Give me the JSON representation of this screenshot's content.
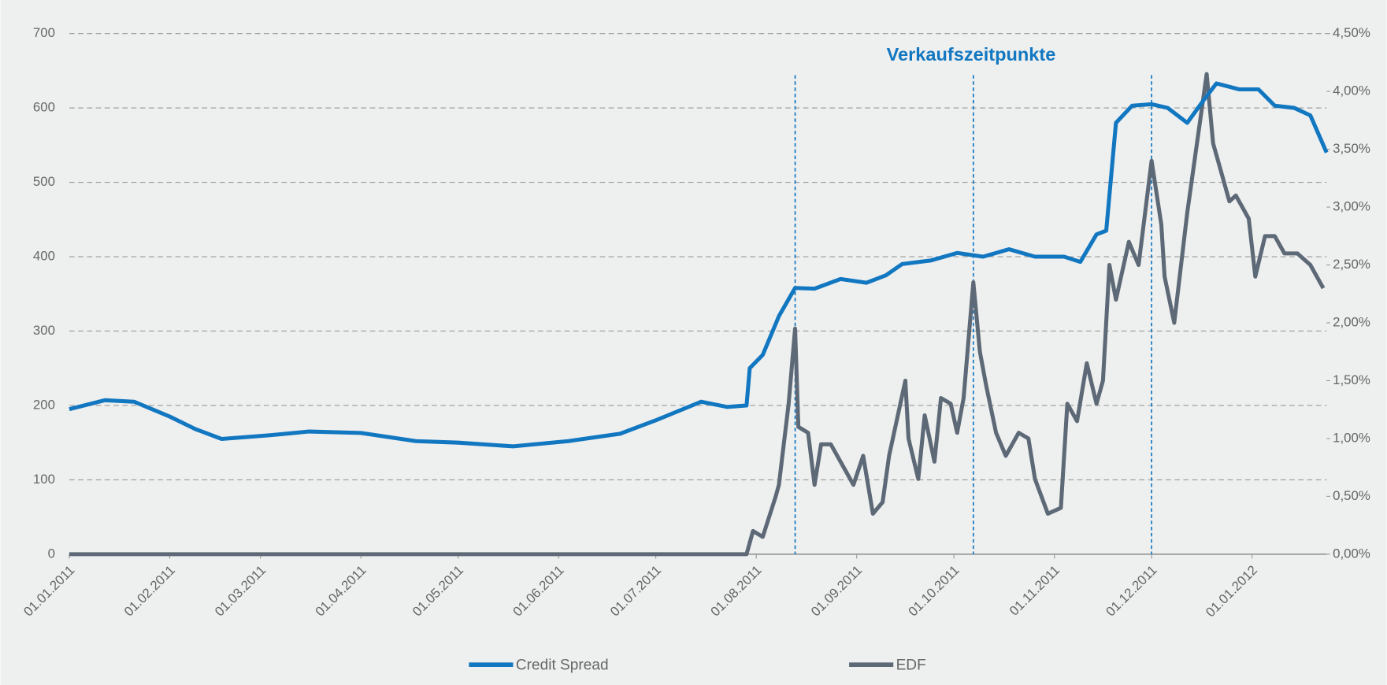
{
  "chart_data": {
    "type": "line",
    "annotation": "Verkaufszeitpunkte",
    "annotation_lines": [
      "13.08.2011",
      "07.10.2011",
      "01.12.2011"
    ],
    "xlim": [
      "01.01.2011",
      "24.01.2012"
    ],
    "xticks": [
      "01.01.2011",
      "01.02.2011",
      "01.03.2011",
      "01.04.2011",
      "01.05.2011",
      "01.06.2011",
      "01.07.2011",
      "01.08.2011",
      "01.09.2011",
      "01.10.2011",
      "01.11.2011",
      "01.12.2011",
      "01.01.2012"
    ],
    "ylim": [
      0,
      700
    ],
    "yticks": [
      0,
      100,
      200,
      300,
      400,
      500,
      600,
      700
    ],
    "y2lim": [
      0,
      4.5
    ],
    "y2ticks": [
      {
        "value": 0,
        "label": "0,00%"
      },
      {
        "value": 0.5,
        "label": "0,50%"
      },
      {
        "value": 1,
        "label": "1,00%"
      },
      {
        "value": 1.5,
        "label": "1,50%"
      },
      {
        "value": 2,
        "label": "2,00%"
      },
      {
        "value": 2.5,
        "label": "2,50%"
      },
      {
        "value": 3,
        "label": "3,00%"
      },
      {
        "value": 3.5,
        "label": "3,50%"
      },
      {
        "value": 4,
        "label": "4,00%"
      },
      {
        "value": 4.5,
        "label": "4,50%"
      }
    ],
    "grid": true,
    "legend": "bottom",
    "series": [
      {
        "name": "Credit Spread",
        "color": "#1277c1",
        "x": [
          "01.01.2011",
          "12.01.2011",
          "21.01.2011",
          "01.02.2011",
          "09.02.2011",
          "17.02.2011",
          "04.03.2011",
          "16.03.2011",
          "01.04.2011",
          "18.04.2011",
          "01.05.2011",
          "18.05.2011",
          "04.06.2011",
          "20.06.2011",
          "01.07.2011",
          "15.07.2011",
          "23.07.2011",
          "29.07.2011",
          "30.07.2011",
          "03.08.2011",
          "08.08.2011",
          "13.08.2011",
          "19.08.2011",
          "27.08.2011",
          "04.09.2011",
          "10.09.2011",
          "15.09.2011",
          "24.09.2011",
          "02.10.2011",
          "10.10.2011",
          "18.10.2011",
          "26.10.2011",
          "04.11.2011",
          "09.11.2011",
          "14.11.2011",
          "17.11.2011",
          "20.11.2011",
          "25.11.2011",
          "01.12.2011",
          "06.12.2011",
          "12.12.2011",
          "17.12.2011",
          "21.12.2011",
          "28.12.2011",
          "03.01.2012",
          "08.01.2012",
          "14.01.2012",
          "19.01.2012",
          "24.01.2012"
        ],
        "values": [
          195,
          207,
          205,
          185,
          168,
          155,
          160,
          165,
          163,
          152,
          150,
          145,
          152,
          162,
          180,
          205,
          198,
          200,
          250,
          268,
          320,
          358,
          357,
          370,
          365,
          375,
          390,
          395,
          405,
          400,
          410,
          400,
          400,
          393,
          430,
          435,
          580,
          603,
          605,
          600,
          580,
          610,
          633,
          625,
          625,
          603,
          600,
          590,
          540
        ]
      },
      {
        "name": "EDF",
        "color": "#5d6976",
        "axis": "y2",
        "x": [
          "01.01.2011",
          "29.07.2011",
          "31.07.2011",
          "03.08.2011",
          "07.08.2011",
          "08.08.2011",
          "11.08.2011",
          "13.08.2011",
          "14.08.2011",
          "17.08.2011",
          "19.08.2011",
          "21.08.2011",
          "24.08.2011",
          "28.08.2011",
          "31.08.2011",
          "03.09.2011",
          "06.09.2011",
          "09.09.2011",
          "11.09.2011",
          "16.09.2011",
          "17.09.2011",
          "20.09.2011",
          "22.09.2011",
          "25.09.2011",
          "27.09.2011",
          "30.09.2011",
          "02.10.2011",
          "04.10.2011",
          "07.10.2011",
          "09.10.2011",
          "11.10.2011",
          "14.10.2011",
          "17.10.2011",
          "21.10.2011",
          "24.10.2011",
          "26.10.2011",
          "30.10.2011",
          "03.11.2011",
          "05.11.2011",
          "08.11.2011",
          "11.11.2011",
          "14.11.2011",
          "16.11.2011",
          "18.11.2011",
          "20.11.2011",
          "24.11.2011",
          "27.11.2011",
          "01.12.2011",
          "04.12.2011",
          "05.12.2011",
          "08.12.2011",
          "12.12.2011",
          "15.12.2011",
          "18.12.2011",
          "20.12.2011",
          "22.12.2011",
          "25.12.2011",
          "27.12.2011",
          "31.12.2011",
          "02.01.2012",
          "05.01.2012",
          "08.01.2012",
          "11.01.2012",
          "15.01.2012",
          "19.01.2012",
          "23.01.2012"
        ],
        "values": [
          0,
          0,
          0.2,
          0.15,
          0.5,
          0.6,
          1.3,
          1.95,
          1.1,
          1.05,
          0.6,
          0.95,
          0.95,
          0.75,
          0.6,
          0.85,
          0.35,
          0.45,
          0.85,
          1.5,
          1.0,
          0.65,
          1.2,
          0.8,
          1.35,
          1.3,
          1.05,
          1.35,
          2.35,
          1.75,
          1.45,
          1.05,
          0.85,
          1.05,
          1.0,
          0.65,
          0.35,
          0.4,
          1.3,
          1.15,
          1.65,
          1.3,
          1.5,
          2.5,
          2.2,
          2.7,
          2.5,
          3.4,
          2.85,
          2.4,
          2.0,
          2.95,
          3.55,
          4.15,
          3.55,
          3.35,
          3.05,
          3.1,
          2.9,
          2.4,
          2.75,
          2.75,
          2.6,
          2.6,
          2.5,
          2.3
        ]
      }
    ]
  }
}
